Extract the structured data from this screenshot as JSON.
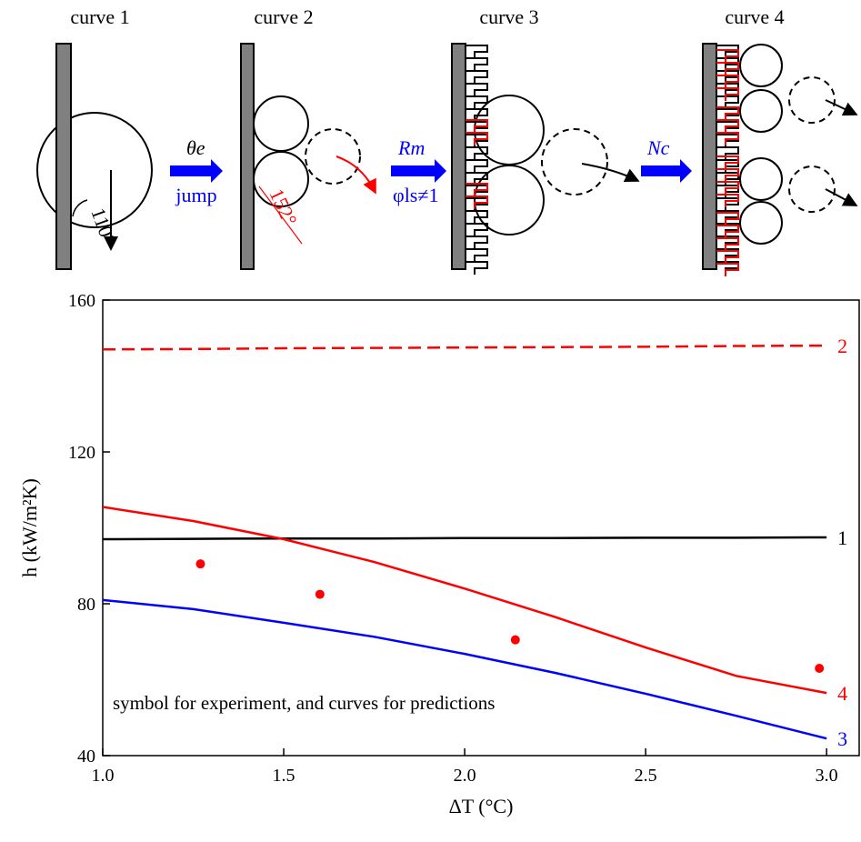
{
  "schematic": {
    "titles": [
      "curve 1",
      "curve 2",
      "curve 3",
      "curve 4"
    ],
    "angles": [
      "110°",
      "152°"
    ],
    "arrow_labels": [
      "θe",
      "jump",
      "Rm",
      "φls≠1",
      "Nc"
    ]
  },
  "chart_data": {
    "type": "line",
    "xlabel": "ΔT (°C)",
    "ylabel": "h (kW/m²K)",
    "annotation": "symbol for experiment, and curves for predictions",
    "xlim": [
      1.0,
      3.09
    ],
    "ylim": [
      40,
      160
    ],
    "xticks": [
      {
        "value": 1,
        "label": "1.0"
      },
      1.5,
      {
        "value": 2,
        "label": "2.0"
      },
      2.5,
      {
        "value": 3,
        "label": "3.0"
      }
    ],
    "yticks": [
      40,
      80,
      120,
      160
    ],
    "series": [
      {
        "name": "1",
        "color": "#000000",
        "linestyle": "solid",
        "x": [
          1,
          1.25,
          1.5,
          1.75,
          2,
          2.25,
          2.5,
          2.75,
          3
        ],
        "values": [
          97,
          97.1,
          97.2,
          97.2,
          97.3,
          97.3,
          97.4,
          97.4,
          97.5
        ]
      },
      {
        "name": "2",
        "color": "#ff0000",
        "linestyle": "dashed",
        "x": [
          1,
          1.25,
          1.5,
          1.75,
          2,
          2.25,
          2.5,
          2.75,
          3
        ],
        "values": [
          147,
          147.1,
          147.3,
          147.4,
          147.5,
          147.6,
          147.7,
          147.9,
          148
        ]
      },
      {
        "name": "3",
        "color": "#0000ff",
        "linestyle": "solid",
        "x": [
          1,
          1.25,
          1.5,
          1.75,
          2,
          2.25,
          2.5,
          2.75,
          3
        ],
        "values": [
          81,
          78.6,
          75,
          71.3,
          66.8,
          61.8,
          56.3,
          50.5,
          44.5
        ]
      },
      {
        "name": "4",
        "color": "#ff0000",
        "linestyle": "solid",
        "x": [
          1,
          1.25,
          1.5,
          1.75,
          2,
          2.25,
          2.5,
          2.75,
          3
        ],
        "values": [
          105.5,
          101.8,
          97,
          91,
          84,
          76.5,
          68.5,
          61,
          56.5
        ]
      }
    ],
    "points": {
      "color": "#ff0000",
      "x": [
        1.27,
        1.6,
        2.14,
        2.98
      ],
      "values": [
        90.5,
        82.5,
        70.5,
        63
      ]
    }
  }
}
